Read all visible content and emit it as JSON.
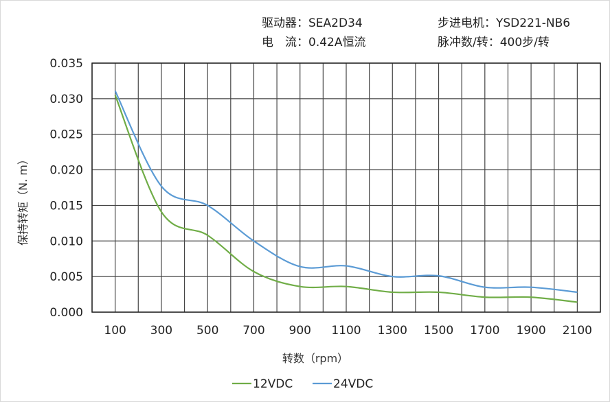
{
  "header": {
    "driver": "驱动器：SEA2D34",
    "motor": "步进电机：YSD221-NB6",
    "current": "电　流：0.42A恒流",
    "pulses": "脉冲数/转：400步/转"
  },
  "chart_data": {
    "type": "line",
    "xlabel": "转数（rpm）",
    "ylabel": "保持转矩（N. m）",
    "x": [
      100,
      300,
      500,
      700,
      900,
      1100,
      1300,
      1500,
      1700,
      1900,
      2100
    ],
    "xlim": [
      0,
      2200
    ],
    "ylim": [
      0,
      0.035
    ],
    "x_ticks": [
      "100",
      "300",
      "500",
      "700",
      "900",
      "1100",
      "1300",
      "1500",
      "1700",
      "1900",
      "2100"
    ],
    "y_ticks": [
      "0.000",
      "0.005",
      "0.010",
      "0.015",
      "0.020",
      "0.025",
      "0.030",
      "0.035"
    ],
    "grid": true,
    "legend": "bottom",
    "series": [
      {
        "name": "12VDC",
        "color": "#70ad47",
        "values": [
          0.0305,
          0.0141,
          0.0108,
          0.0057,
          0.0036,
          0.0036,
          0.0028,
          0.0028,
          0.0021,
          0.0021,
          0.0014
        ]
      },
      {
        "name": "24VDC",
        "color": "#5b9bd5",
        "values": [
          0.0311,
          0.0177,
          0.015,
          0.01,
          0.0064,
          0.0065,
          0.005,
          0.0051,
          0.0035,
          0.0035,
          0.0028
        ]
      }
    ]
  }
}
